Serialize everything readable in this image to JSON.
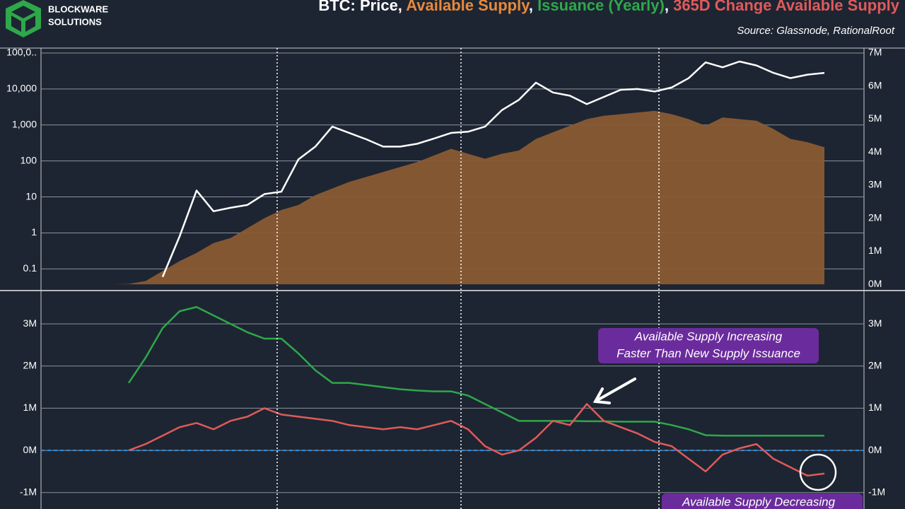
{
  "header": {
    "logo": [
      "BLOCKWARE",
      "SOLUTIONS"
    ],
    "title_parts": [
      "BTC: Price, ",
      "Available Supply",
      ", ",
      "Issuance (Yearly)",
      ", ",
      "365D Change Available Supply"
    ],
    "title_colors": [
      "#ffffff",
      "#e8893a",
      "#ffffff",
      "#2ea84a",
      "#ffffff",
      "#e05a5a"
    ],
    "source": "Source: Glassnode, RationalRoot"
  },
  "chart_data": [
    {
      "type": "line",
      "log_scale": true,
      "grid": true,
      "ylim": [
        0.025,
        137000
      ],
      "yticks": [
        0.1,
        1,
        10,
        100,
        {
          "value": 1000,
          "label": "1,000"
        },
        {
          "value": 10000,
          "label": "10,000"
        },
        {
          "value": 100000,
          "label": "100,0.."
        }
      ],
      "y2lim": [
        -190000,
        7150000
      ],
      "y2ticks": [
        {
          "value": 0,
          "label": "0M"
        },
        {
          "value": 1000000,
          "label": "1M"
        },
        {
          "value": 2000000,
          "label": "2M"
        },
        {
          "value": 3000000,
          "label": "3M"
        },
        {
          "value": 4000000,
          "label": "4M"
        },
        {
          "value": 5000000,
          "label": "5M"
        },
        {
          "value": 6000000,
          "label": "6M"
        },
        {
          "value": 7000000,
          "label": "7M"
        }
      ],
      "series": [
        {
          "name": "Available Supply",
          "color": "#8a5a34",
          "axis": "y2",
          "area": true,
          "values": [
            0,
            0,
            0,
            10000,
            100000,
            400000,
            700000,
            950000,
            1250000,
            1400000,
            1700000,
            2000000,
            2250000,
            2400000,
            2700000,
            2900000,
            3100000,
            3250000,
            3400000,
            3550000,
            3700000,
            3900000,
            4100000,
            3950000,
            3800000,
            3950000,
            4050000,
            4400000,
            4600000,
            4800000,
            5000000,
            5100000,
            5150000,
            5200000,
            5250000,
            5150000,
            5000000,
            4800000,
            5050000,
            5000000,
            4950000,
            4700000,
            4400000,
            4300000,
            4150000
          ]
        },
        {
          "name": "Price",
          "color": "#ffffff",
          "values": [
            null,
            null,
            null,
            null,
            null,
            0.06,
            0.8,
            15,
            4,
            5,
            6,
            12,
            14,
            110,
            250,
            900,
            600,
            400,
            250,
            250,
            300,
            420,
            600,
            650,
            900,
            2600,
            5000,
            15000,
            8000,
            6500,
            3800,
            6000,
            9500,
            10000,
            8500,
            11000,
            20000,
            55000,
            40000,
            58000,
            45000,
            28000,
            20000,
            25000,
            28000
          ]
        }
      ]
    },
    {
      "type": "line",
      "grid": true,
      "ylim": [
        -1390000,
        3790000
      ],
      "yticks": [
        {
          "value": -1000000,
          "label": "-1M"
        },
        {
          "value": 0,
          "label": "0M"
        },
        {
          "value": 1000000,
          "label": "1M"
        },
        {
          "value": 2000000,
          "label": "2M"
        },
        {
          "value": 3000000,
          "label": "3M"
        }
      ],
      "zero_line": true,
      "series": [
        {
          "name": "Issuance (Yearly)",
          "color": "#2ea84a",
          "values": [
            null,
            null,
            null,
            1600000,
            2200000,
            2900000,
            3300000,
            3400000,
            3200000,
            3000000,
            2800000,
            2650000,
            2650000,
            2300000,
            1900000,
            1600000,
            1600000,
            1550000,
            1500000,
            1450000,
            1420000,
            1400000,
            1400000,
            1300000,
            1100000,
            900000,
            700000,
            700000,
            700000,
            700000,
            690000,
            690000,
            680000,
            680000,
            680000,
            600000,
            500000,
            360000,
            350000,
            350000,
            350000,
            350000,
            350000,
            350000,
            350000
          ]
        },
        {
          "name": "365D Change Available Supply",
          "color": "#e05a5a",
          "values": [
            null,
            null,
            null,
            0,
            150000,
            350000,
            550000,
            650000,
            500000,
            700000,
            800000,
            1000000,
            850000,
            800000,
            750000,
            700000,
            600000,
            550000,
            500000,
            550000,
            500000,
            600000,
            700000,
            500000,
            100000,
            -100000,
            0,
            300000,
            700000,
            600000,
            1100000,
            700000,
            550000,
            400000,
            200000,
            100000,
            -200000,
            -500000,
            -100000,
            50000,
            150000,
            -200000,
            -400000,
            -600000,
            -550000
          ]
        }
      ],
      "annotations": [
        "Available Supply Increasing",
        "Faster Than New Supply Issuance",
        "Available Supply Decreasing"
      ]
    }
  ]
}
